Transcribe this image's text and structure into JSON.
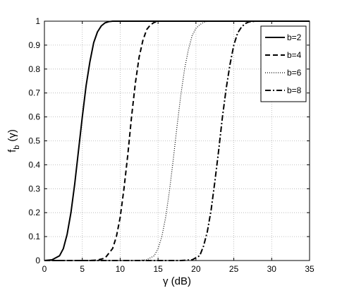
{
  "chart_data": {
    "type": "line",
    "title": "",
    "xlabel": "γ (dB)",
    "ylabel_main": "f",
    "ylabel_sub": "b",
    "ylabel_paren": "(γ)",
    "xlim": [
      0,
      35
    ],
    "ylim": [
      0,
      1
    ],
    "xticks": [
      "0",
      "5",
      "10",
      "15",
      "20",
      "25",
      "30",
      "35"
    ],
    "yticks": [
      "0",
      "0.1",
      "0.2",
      "0.3",
      "0.4",
      "0.5",
      "0.6",
      "0.7",
      "0.8",
      "0.9",
      "1"
    ],
    "grid": true,
    "legend_position": "top-right",
    "series": [
      {
        "name": "b=2",
        "style": "solid",
        "x": [
          0,
          1,
          2,
          2.5,
          3,
          3.5,
          4,
          4.5,
          5,
          5.5,
          6,
          6.5,
          7,
          7.5,
          8,
          8.5,
          9,
          10,
          12,
          35
        ],
        "y": [
          0,
          0.003,
          0.02,
          0.05,
          0.11,
          0.2,
          0.32,
          0.46,
          0.6,
          0.73,
          0.83,
          0.91,
          0.955,
          0.98,
          0.993,
          0.998,
          1,
          1,
          1,
          1
        ]
      },
      {
        "name": "b=4",
        "style": "dashed",
        "x": [
          0,
          6,
          7,
          8,
          9,
          9.5,
          10,
          10.5,
          11,
          11.5,
          12,
          12.5,
          13,
          13.5,
          14,
          14.5,
          15,
          16,
          35
        ],
        "y": [
          0,
          0,
          0.002,
          0.01,
          0.05,
          0.1,
          0.18,
          0.3,
          0.44,
          0.6,
          0.74,
          0.85,
          0.92,
          0.965,
          0.985,
          0.995,
          1,
          1,
          1
        ]
      },
      {
        "name": "b=6",
        "style": "dotted",
        "x": [
          0,
          12,
          13.5,
          14.5,
          15,
          15.5,
          16,
          16.5,
          17,
          17.5,
          18,
          18.5,
          19,
          19.5,
          20,
          20.5,
          21,
          21.5,
          22,
          35
        ],
        "y": [
          0,
          0,
          0.003,
          0.02,
          0.05,
          0.1,
          0.18,
          0.29,
          0.42,
          0.56,
          0.69,
          0.8,
          0.88,
          0.94,
          0.97,
          0.985,
          0.995,
          0.999,
          1,
          1
        ]
      },
      {
        "name": "b=8",
        "style": "dashdot",
        "x": [
          0,
          18,
          19.5,
          20.5,
          21,
          21.5,
          22,
          22.5,
          23,
          23.5,
          24,
          24.5,
          25,
          25.5,
          26,
          26.5,
          27,
          27.5,
          28,
          35
        ],
        "y": [
          0,
          0,
          0.003,
          0.02,
          0.06,
          0.12,
          0.21,
          0.33,
          0.46,
          0.6,
          0.72,
          0.82,
          0.9,
          0.95,
          0.975,
          0.99,
          0.997,
          0.999,
          1,
          1
        ]
      }
    ]
  }
}
